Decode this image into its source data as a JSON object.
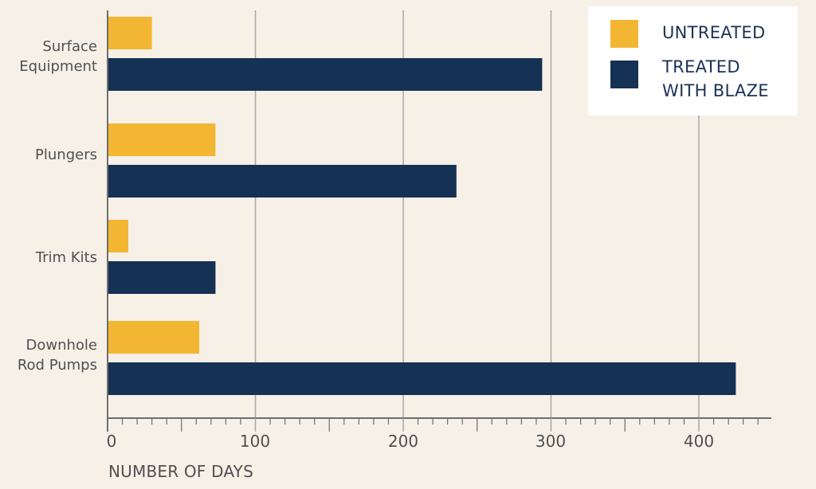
{
  "chart_data": {
    "type": "bar",
    "orientation": "horizontal",
    "title": "",
    "xlabel": "NUMBER OF DAYS",
    "ylabel": "",
    "categories": [
      "Surface Equipment",
      "Plungers",
      "Trim Kits",
      "Downhole Rod Pumps"
    ],
    "series": [
      {
        "name": "UNTREATED",
        "color": "#f3b633",
        "values": [
          30,
          73,
          14,
          62
        ]
      },
      {
        "name": "TREATED WITH BLAZE",
        "color": "#153153",
        "values": [
          294,
          236,
          73,
          425
        ]
      }
    ],
    "xlim": [
      0,
      450
    ],
    "xticks": [
      0,
      100,
      200,
      300,
      400
    ],
    "minor_tick_step": 10,
    "grid": {
      "vertical": true,
      "horizontal": false
    },
    "legend_position": "top-right"
  },
  "labels": {
    "categories": [
      "Surface\nEquipment",
      "Plungers",
      "Trim Kits",
      "Downhole\nRod Pumps"
    ],
    "ticks": [
      "0",
      "100",
      "200",
      "300",
      "400"
    ],
    "axis_title": "NUMBER OF DAYS",
    "legend": [
      "UNTREATED",
      "TREATED\nWITH BLAZE"
    ]
  },
  "colors": {
    "background": "#f6f0e6",
    "untreated": "#f3b633",
    "treated": "#153153",
    "gridline": "#a8a8a8",
    "axis": "#6e6e6e",
    "text": "#505050",
    "legend_text": "#1a3256"
  }
}
